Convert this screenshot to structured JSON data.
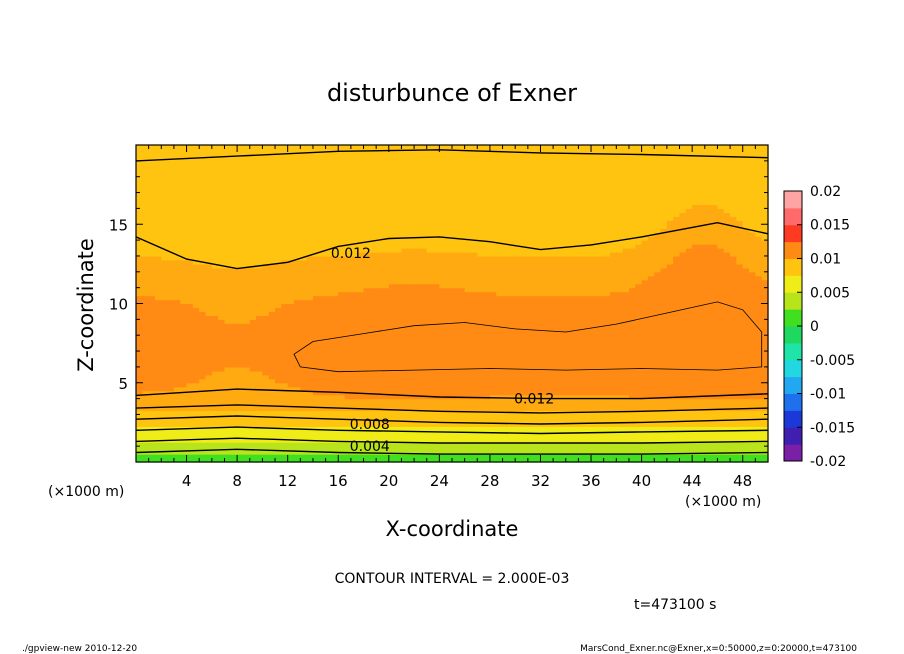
{
  "chart_data": {
    "type": "heatmap",
    "title": "disturbunce of Exner",
    "xlabel": "X-coordinate",
    "ylabel": "Z-coordinate",
    "x_unit": "(×1000 m)",
    "y_unit": "(×1000 m)",
    "xlim": [
      0,
      50
    ],
    "ylim": [
      0,
      20
    ],
    "x_ticks": [
      4,
      8,
      12,
      16,
      20,
      24,
      28,
      32,
      36,
      40,
      44,
      48
    ],
    "y_ticks": [
      5,
      10,
      15
    ],
    "colorbar": {
      "min": -0.02,
      "max": 0.02,
      "step": 0.0025,
      "tick_labels": [
        "0.02",
        "0.015",
        "0.01",
        "0.005",
        "0",
        "-0.005",
        "-0.01",
        "-0.015",
        "-0.02"
      ],
      "tick_values": [
        0.02,
        0.015,
        0.01,
        0.005,
        0,
        -0.005,
        -0.01,
        -0.015,
        -0.02
      ]
    },
    "contour_labels": [
      {
        "text": "0.012",
        "x": 17,
        "z": 13.2
      },
      {
        "text": "0.012",
        "x": 31.5,
        "z": 4.0
      },
      {
        "text": "0.008",
        "x": 18.5,
        "z": 2.4
      },
      {
        "text": "0.004",
        "x": 18.5,
        "z": 1.0
      }
    ],
    "contour_interval_text": "CONTOUR INTERVAL = 2.000E-03",
    "time_text": "t=473100 s"
  },
  "footer": {
    "left": "./gpview-new   2010-12-20",
    "right": "MarsCond_Exner.nc@Exner,x=0:50000,z=0:20000,t=473100"
  }
}
